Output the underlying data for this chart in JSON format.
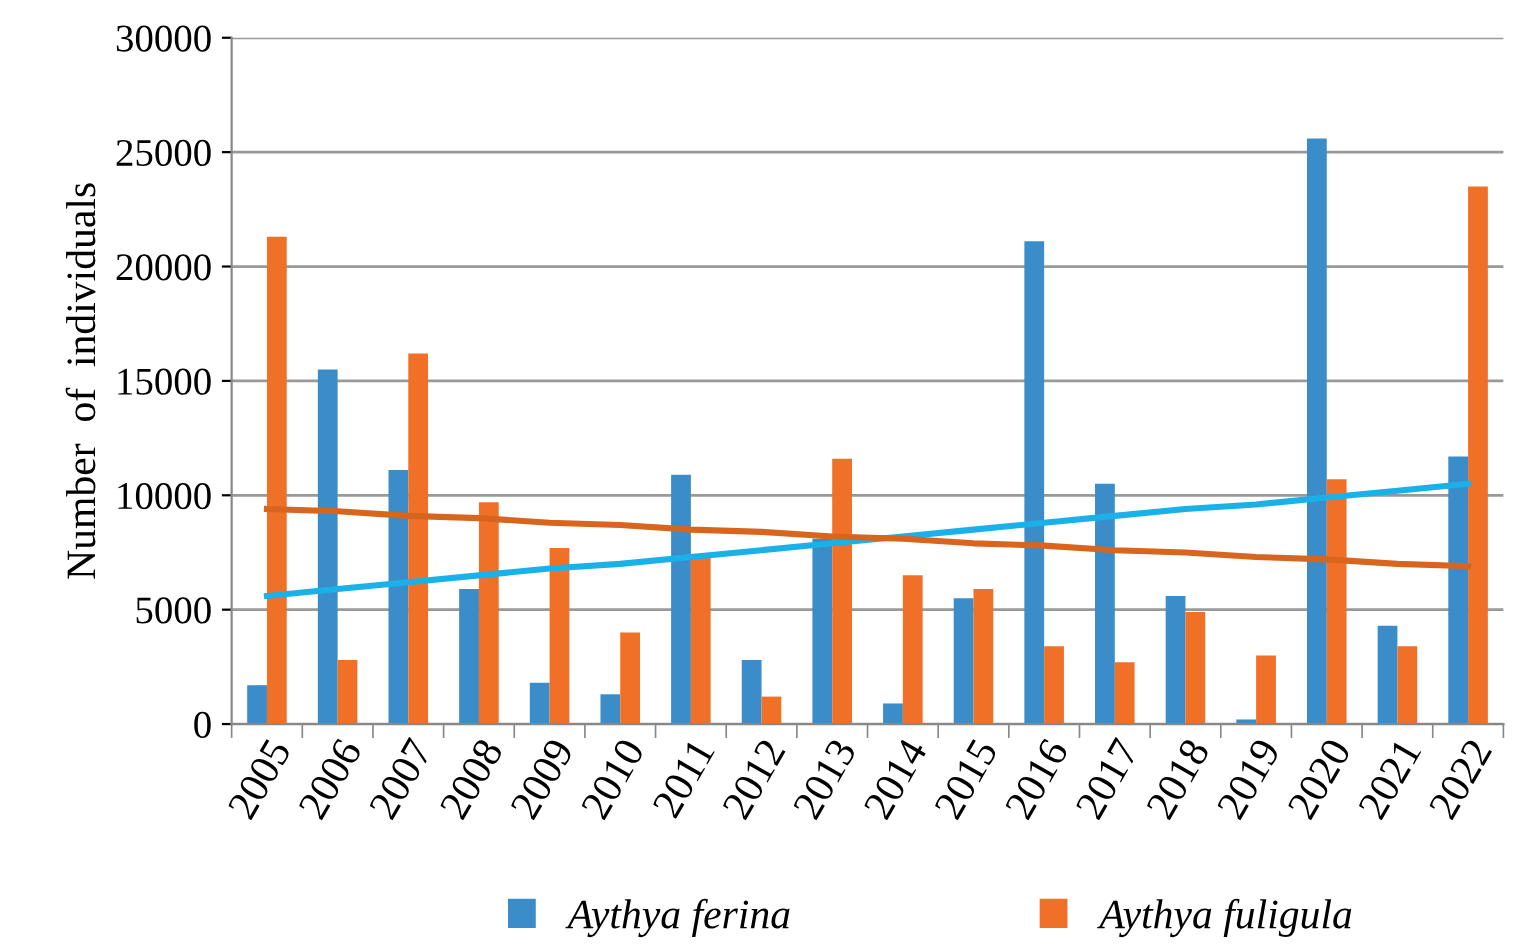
{
  "chart_data": {
    "type": "bar",
    "ylabel": "Number  of  individuals",
    "categories": [
      "2005",
      "2006",
      "2007",
      "2008",
      "2009",
      "2010",
      "2011",
      "2012",
      "2013",
      "2014",
      "2015",
      "2016",
      "2017",
      "2018",
      "2019",
      "2020",
      "2021",
      "2022"
    ],
    "series": [
      {
        "name": "Aythya ferina",
        "color": "#3a8dc9",
        "values": [
          1700,
          15500,
          11100,
          5900,
          1800,
          1300,
          10900,
          2800,
          8100,
          900,
          5500,
          21100,
          10500,
          5600,
          200,
          25600,
          4300,
          11700
        ]
      },
      {
        "name": "Aythya fuligula",
        "color": "#f07028",
        "values": [
          21300,
          2800,
          16200,
          9700,
          7700,
          4000,
          7300,
          1200,
          11600,
          6500,
          5900,
          3400,
          2700,
          4900,
          3000,
          10700,
          3400,
          23500
        ]
      },
      {
        "type": "line",
        "color": "#1ab0e8",
        "values": [
          5600,
          5900,
          6200,
          6500,
          6800,
          7000,
          7300,
          7600,
          7900,
          8200,
          8500,
          8800,
          9100,
          9400,
          9600,
          9900,
          10200,
          10500
        ]
      },
      {
        "type": "line",
        "color": "#d8651e",
        "values": [
          9400,
          9300,
          9100,
          9000,
          8800,
          8700,
          8500,
          8400,
          8200,
          8100,
          7900,
          7800,
          7600,
          7500,
          7300,
          7200,
          7000,
          6900
        ]
      }
    ],
    "ylim": [
      0,
      30000
    ],
    "yticks": [
      0,
      5000,
      10000,
      15000,
      20000,
      25000,
      30000
    ],
    "grid": "y",
    "legend": "bottom"
  }
}
